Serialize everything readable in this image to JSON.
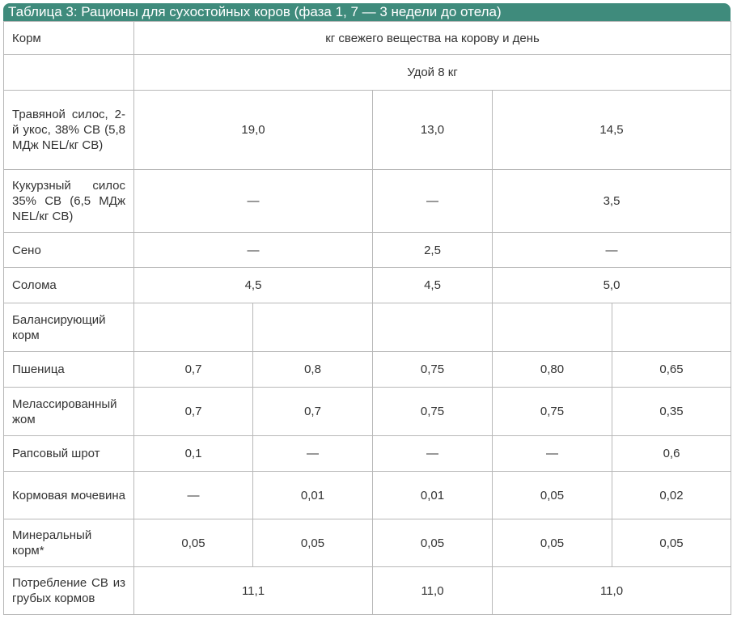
{
  "title": "Таблица 3: Рационы для сухостойных коров (фаза 1, 7 — 3 недели до отела)",
  "header": {
    "corner": "Корм",
    "units": "кг свежего вещества на корову и день",
    "subheader": "Удой 8 кг"
  },
  "rows": [
    {
      "label": "Травяной силос, 2-й укос, 38% СВ (5,8 МДж NEL/кг СВ)",
      "cells": [
        "19,0",
        "13,0",
        "14,5"
      ]
    },
    {
      "label": "Кукурзный силос 35% СВ (6,5 МДж NEL/кг СВ)",
      "cells": [
        "—",
        "—",
        "3,5"
      ]
    },
    {
      "label": "Сено",
      "cells": [
        "—",
        "2,5",
        "—"
      ]
    },
    {
      "label": "Солома",
      "cells": [
        "4,5",
        "4,5",
        "5,0"
      ]
    },
    {
      "label": "Балансирующий корм",
      "cells": []
    },
    {
      "label": "Пшеница",
      "cells": [
        "0,7",
        "0,8",
        "0,75",
        "0,80",
        "0,65"
      ]
    },
    {
      "label": "Мелассированный жом",
      "cells": [
        "0,7",
        "0,7",
        "0,75",
        "0,75",
        "0,35"
      ]
    },
    {
      "label": "Рапсовый шрот",
      "cells": [
        "0,1",
        "—",
        "—",
        "—",
        "0,6"
      ]
    },
    {
      "label": "Кормовая мочевина",
      "cells": [
        "—",
        "0,01",
        "0,01",
        "0,05",
        "0,02"
      ]
    },
    {
      "label": "Минеральный корм*",
      "cells": [
        "0,05",
        "0,05",
        "0,05",
        "0,05",
        "0,05"
      ]
    },
    {
      "label": "Потребление СВ из грубых кормов",
      "cells": [
        "11,1",
        "11,0",
        "11,0"
      ]
    }
  ]
}
